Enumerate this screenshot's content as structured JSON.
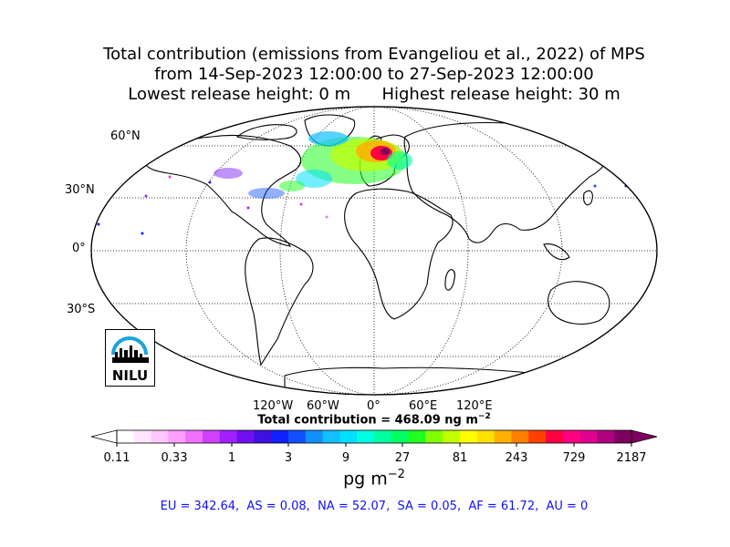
{
  "title": {
    "line1": "Total contribution (emissions from Evangeliou et al., 2022) of MPS",
    "line2": "from 14-Sep-2023 12:00:00 to 27-Sep-2023 12:00:00",
    "line3": "Lowest release height: 0 m      Highest release height: 30 m"
  },
  "latitude_labels": [
    "60°N",
    "30°N",
    "0°",
    "30°S"
  ],
  "longitude_labels": [
    "120°W",
    "60°W",
    "0°",
    "60°E",
    "120°E"
  ],
  "total_contribution": "Total contribution = 468.09 ng m",
  "total_exponent": "−2",
  "colorbar": {
    "ticks": [
      "0.11",
      "0.33",
      "1",
      "3",
      "9",
      "27",
      "81",
      "243",
      "729",
      "2187"
    ],
    "colors": [
      "#ffffff",
      "#ffe6ff",
      "#ffc8ff",
      "#ff9eff",
      "#f070ff",
      "#d040ff",
      "#a020ff",
      "#7010f0",
      "#4010e0",
      "#1020ff",
      "#1050ff",
      "#1090ff",
      "#10c0ff",
      "#00e0ff",
      "#00ffe0",
      "#00ffa0",
      "#00ff60",
      "#20ff20",
      "#80ff00",
      "#c0ff00",
      "#ffff00",
      "#ffe000",
      "#ffb000",
      "#ff8000",
      "#ff4000",
      "#ff0040",
      "#ff0080",
      "#e00090",
      "#b00080",
      "#800060"
    ],
    "units": "pg m",
    "units_exponent": "−2"
  },
  "regions": "EU = 342.64,  AS = 0.08,  NA = 52.07,  SA = 0.05,  AF = 61.72,  AU = 0",
  "logo_text": "NILU"
}
